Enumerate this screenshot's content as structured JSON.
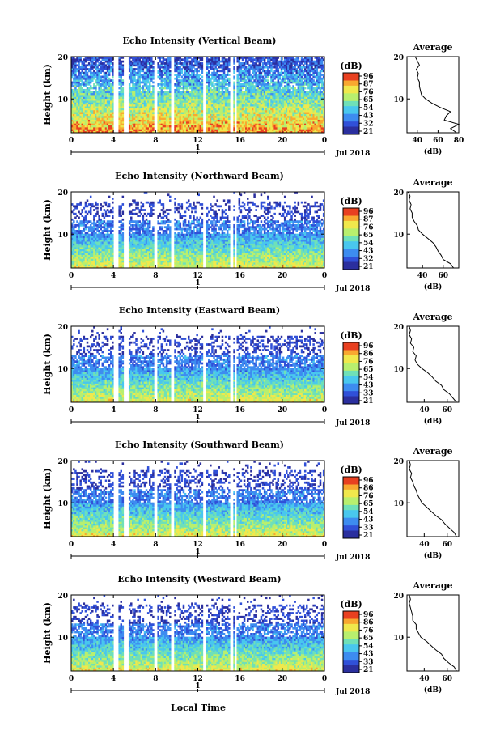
{
  "figure": {
    "xlabel": "Local Time",
    "date_label": "Jul 2018",
    "day_marker": "1",
    "x_ticks": [
      "0",
      "4",
      "8",
      "12",
      "16",
      "20",
      "0"
    ],
    "y_ticks": [
      "10",
      "20"
    ],
    "ylabel": "Height (km)",
    "colorbar_unit": "(dB)",
    "colormap": [
      "#2b2f9e",
      "#3050d8",
      "#3d8cf0",
      "#49c7ee",
      "#6fe0b8",
      "#b8ef6e",
      "#f0e84c",
      "#f8a830",
      "#e84020"
    ],
    "gap_bands_hours": [
      [
        4.0,
        4.45
      ],
      [
        5.0,
        5.5
      ],
      [
        7.8,
        8.15
      ],
      [
        9.4,
        9.7
      ],
      [
        12.5,
        12.75
      ],
      [
        15.0,
        15.3
      ],
      [
        15.5,
        15.7
      ]
    ],
    "avg_title": "Average",
    "avg_xlabel": "(dB)"
  },
  "chart_data": [
    {
      "type": "heatmap",
      "title": "Echo Intensity (Vertical Beam)",
      "x_range_hours": [
        0,
        24
      ],
      "y_range_km": [
        2,
        20
      ],
      "colorbar_ticks": [
        "96",
        "87",
        "76",
        "65",
        "54",
        "43",
        "32",
        "21"
      ],
      "profile": {
        "xlim": [
          30,
          80
        ],
        "x_ticks": [
          "40",
          "60",
          "80"
        ],
        "heights_km": [
          2,
          3,
          4,
          5,
          6,
          7,
          8,
          9,
          10,
          11,
          12,
          13,
          14,
          15,
          16,
          17,
          18,
          19,
          20
        ],
        "values_db": [
          78,
          72,
          80,
          66,
          68,
          72,
          62,
          54,
          48,
          44,
          43,
          42,
          42,
          40,
          41,
          39,
          42,
          40,
          38
        ]
      }
    },
    {
      "type": "heatmap",
      "title": "Echo Intensity (Northward Beam)",
      "x_range_hours": [
        0,
        24
      ],
      "y_range_km": [
        2,
        20
      ],
      "colorbar_ticks": [
        "96",
        "87",
        "76",
        "65",
        "54",
        "43",
        "32",
        "21"
      ],
      "profile": {
        "xlim": [
          25,
          75
        ],
        "x_ticks": [
          "40",
          "60"
        ],
        "heights_km": [
          2,
          3,
          4,
          5,
          6,
          7,
          8,
          9,
          10,
          11,
          12,
          13,
          14,
          15,
          16,
          17,
          18,
          19,
          20
        ],
        "values_db": [
          70,
          67,
          60,
          58,
          55,
          53,
          50,
          45,
          40,
          36,
          35,
          32,
          30,
          30,
          28,
          29,
          27,
          28,
          26
        ]
      }
    },
    {
      "type": "heatmap",
      "title": "Echo Intensity (Eastward Beam)",
      "x_range_hours": [
        0,
        24
      ],
      "y_range_km": [
        2,
        20
      ],
      "colorbar_ticks": [
        "96",
        "86",
        "76",
        "65",
        "54",
        "43",
        "33",
        "21"
      ],
      "profile": {
        "xlim": [
          25,
          70
        ],
        "x_ticks": [
          "40",
          "60"
        ],
        "heights_km": [
          2,
          3,
          4,
          5,
          6,
          7,
          8,
          9,
          10,
          11,
          12,
          13,
          14,
          15,
          16,
          17,
          18,
          19,
          20
        ],
        "values_db": [
          68,
          65,
          62,
          57,
          55,
          50,
          47,
          43,
          38,
          34,
          32,
          33,
          30,
          31,
          28,
          29,
          27,
          28,
          27
        ]
      }
    },
    {
      "type": "heatmap",
      "title": "Echo Intensity (Southward Beam)",
      "x_range_hours": [
        0,
        24
      ],
      "y_range_km": [
        2,
        20
      ],
      "colorbar_ticks": [
        "96",
        "86",
        "76",
        "65",
        "54",
        "43",
        "33",
        "21"
      ],
      "profile": {
        "xlim": [
          25,
          70
        ],
        "x_ticks": [
          "40",
          "60"
        ],
        "heights_km": [
          2,
          3,
          4,
          5,
          6,
          7,
          8,
          9,
          10,
          11,
          12,
          13,
          14,
          15,
          16,
          17,
          18,
          19,
          20
        ],
        "values_db": [
          68,
          66,
          62,
          58,
          55,
          50,
          46,
          42,
          38,
          36,
          34,
          33,
          31,
          30,
          28,
          29,
          27,
          28,
          27
        ]
      }
    },
    {
      "type": "heatmap",
      "title": "Echo Intensity (Westward Beam)",
      "x_range_hours": [
        0,
        24
      ],
      "y_range_km": [
        2,
        20
      ],
      "colorbar_ticks": [
        "96",
        "86",
        "76",
        "65",
        "54",
        "43",
        "33",
        "21"
      ],
      "profile": {
        "xlim": [
          25,
          70
        ],
        "x_ticks": [
          "40",
          "60"
        ],
        "heights_km": [
          2,
          3,
          4,
          5,
          6,
          7,
          8,
          9,
          10,
          11,
          12,
          13,
          14,
          15,
          16,
          17,
          18,
          19,
          20
        ],
        "values_db": [
          68,
          66,
          61,
          57,
          55,
          50,
          46,
          42,
          37,
          35,
          33,
          33,
          30,
          30,
          29,
          28,
          27,
          28,
          27
        ]
      }
    }
  ]
}
